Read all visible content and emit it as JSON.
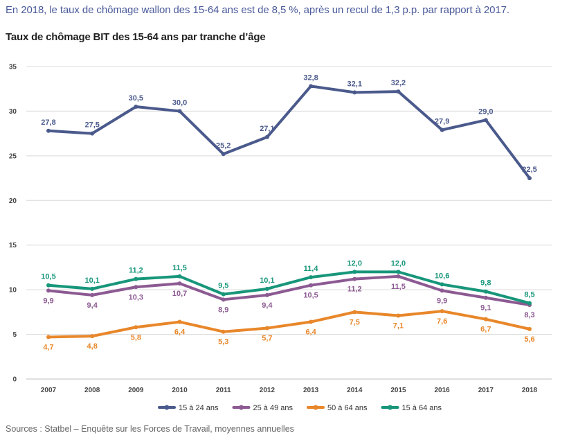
{
  "headline": "En 2018, le taux de chômage wallon des 15-64 ans est de 8,5 %, après un recul de 1,3 p.p. par rapport à 2017.",
  "title": "Taux de chômage BIT des 15-64 ans par tranche d’âge",
  "source": "Sources : Statbel – Enquête sur les Forces de Travail, moyennes annuelles",
  "chart_data": {
    "type": "line",
    "title": "Taux de chômage BIT des 15-64 ans par tranche d’âge",
    "xlabel": "",
    "ylabel": "",
    "ylim": [
      0,
      35
    ],
    "yticks": [
      0,
      5,
      10,
      15,
      20,
      25,
      30,
      35
    ],
    "grid": true,
    "legend_position": "bottom",
    "categories": [
      "2007",
      "2008",
      "2009",
      "2010",
      "2011",
      "2012",
      "2013",
      "2014",
      "2015",
      "2016",
      "2017",
      "2018"
    ],
    "series": [
      {
        "name": "15 à 24 ans",
        "color": "#4b5a8c",
        "label_position": "above",
        "values": [
          27.8,
          27.5,
          30.5,
          30.0,
          25.2,
          27.1,
          32.8,
          32.1,
          32.2,
          27.9,
          29.0,
          22.5
        ],
        "labels": [
          "27,8",
          "27,5",
          "30,5",
          "30,0",
          "25,2",
          "27,1",
          "32,8",
          "32,1",
          "32,2",
          "27,9",
          "29,0",
          "22,5"
        ]
      },
      {
        "name": "25 à 49 ans",
        "color": "#8c5a92",
        "label_position": "below",
        "values": [
          9.9,
          9.4,
          10.3,
          10.7,
          8.9,
          9.4,
          10.5,
          11.2,
          11.5,
          9.9,
          9.1,
          8.3
        ],
        "labels": [
          "9,9",
          "9,4",
          "10,3",
          "10,7",
          "8,9",
          "9,4",
          "10,5",
          "11,2",
          "11,5",
          "9,9",
          "9,1",
          "8,3"
        ]
      },
      {
        "name": "50 à 64 ans",
        "color": "#e8872a",
        "label_position": "below",
        "values": [
          4.7,
          4.8,
          5.8,
          6.4,
          5.3,
          5.7,
          6.4,
          7.5,
          7.1,
          7.6,
          6.7,
          5.6
        ],
        "labels": [
          "4,7",
          "4,8",
          "5,8",
          "6,4",
          "5,3",
          "5,7",
          "6,4",
          "7,5",
          "7,1",
          "7,6",
          "6,7",
          "5,6"
        ]
      },
      {
        "name": "15 à 64 ans",
        "color": "#17967a",
        "label_position": "above",
        "values": [
          10.5,
          10.1,
          11.2,
          11.5,
          9.5,
          10.1,
          11.4,
          12.0,
          12.0,
          10.6,
          9.8,
          8.5
        ],
        "labels": [
          "10,5",
          "10,1",
          "11,2",
          "11,5",
          "9,5",
          "10,1",
          "11,4",
          "12,0",
          "12,0",
          "10,6",
          "9,8",
          "8,5"
        ]
      }
    ]
  }
}
